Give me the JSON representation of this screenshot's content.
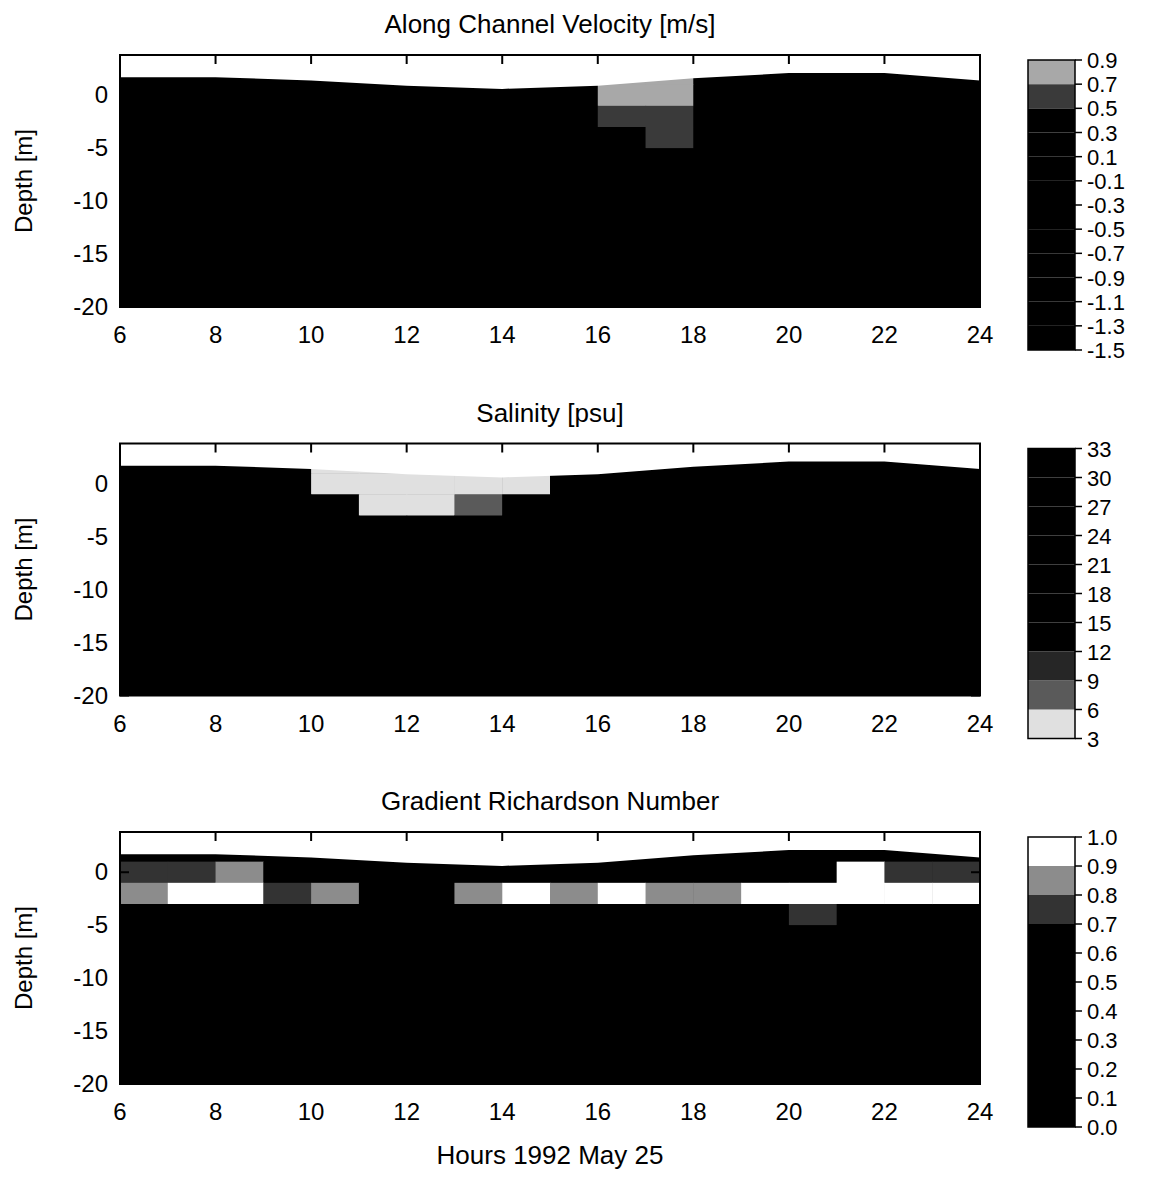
{
  "chart_data": [
    {
      "type": "heatmap",
      "title": "Along Channel Velocity [m/s]",
      "y_label": "Depth [m]",
      "xlim": [
        6,
        24
      ],
      "xticks": [
        6,
        8,
        10,
        12,
        14,
        16,
        18,
        20,
        22,
        24
      ],
      "ylim": [
        -20,
        3.8
      ],
      "yticks": [
        -20,
        -15,
        -10,
        -5,
        0
      ],
      "x_edges": [
        6,
        7,
        8,
        9,
        10,
        11,
        12,
        13,
        14,
        15,
        16,
        17,
        18,
        19,
        20,
        21,
        22,
        23,
        24
      ],
      "y_edges": [
        3,
        1,
        -1,
        -3,
        -5,
        -10,
        -15,
        -20
      ],
      "cells": [
        [
          -0.9,
          -1.0,
          -1.0,
          -0.9,
          -0.8,
          -0.6,
          -0.4,
          -0.2,
          0.0,
          0.2,
          0.8,
          0.8,
          0.4,
          0.2,
          -0.2,
          -0.6,
          -0.9,
          -1.0
        ],
        [
          -0.9,
          -1.0,
          -1.0,
          -0.9,
          -0.8,
          -0.6,
          -0.4,
          -0.2,
          0.0,
          0.2,
          0.8,
          0.8,
          0.4,
          0.2,
          -0.2,
          -0.6,
          -0.9,
          -1.0
        ],
        [
          -0.8,
          -0.9,
          -0.9,
          -0.8,
          -0.7,
          -0.5,
          -0.3,
          -0.1,
          0.1,
          0.3,
          0.6,
          0.6,
          0.4,
          0.2,
          -0.2,
          -0.5,
          -0.8,
          -0.9
        ],
        [
          -0.7,
          -0.8,
          -0.8,
          -0.7,
          -0.6,
          -0.4,
          -0.2,
          0.0,
          0.2,
          0.3,
          0.4,
          0.55,
          0.4,
          0.2,
          -0.1,
          -0.4,
          -0.7,
          -0.8
        ],
        [
          -0.5,
          -0.6,
          -0.6,
          -0.5,
          -0.4,
          -0.3,
          -0.1,
          0.1,
          0.2,
          0.3,
          0.4,
          0.4,
          0.3,
          0.2,
          0.0,
          -0.3,
          -0.5,
          -0.6
        ],
        [
          -0.3,
          -0.4,
          -0.4,
          -0.3,
          -0.2,
          -0.1,
          0.0,
          0.1,
          0.2,
          0.3,
          0.3,
          0.3,
          0.3,
          0.2,
          0.0,
          -0.2,
          -0.3,
          -0.4
        ],
        [
          -0.2,
          -0.3,
          -0.3,
          -0.2,
          -0.1,
          0.0,
          0.0,
          0.1,
          0.2,
          0.2,
          0.2,
          0.2,
          0.2,
          0.1,
          0.0,
          -0.1,
          -0.2,
          -0.3
        ]
      ],
      "surface": {
        "x": [
          6,
          8,
          10,
          12,
          14,
          16,
          18,
          20,
          22,
          24
        ],
        "values": [
          1.7,
          1.7,
          1.4,
          0.9,
          0.6,
          0.9,
          1.6,
          2.1,
          2.1,
          1.4
        ]
      },
      "colorbar": {
        "range": [
          -1.5,
          0.9
        ],
        "ticks": [
          -1.5,
          -1.3,
          -1.1,
          -0.9,
          -0.7,
          -0.5,
          -0.3,
          -0.1,
          0.1,
          0.3,
          0.5,
          0.7,
          0.9
        ],
        "colors": [
          "#000000",
          "#000000",
          "#000000",
          "#000000",
          "#000000",
          "#000000",
          "#000000",
          "#000000",
          "#000000",
          "#000000",
          "#3a3a3a",
          "#a8a8a8"
        ]
      }
    },
    {
      "type": "heatmap",
      "title": "Salinity [psu]",
      "y_label": "Depth [m]",
      "xlim": [
        6,
        24
      ],
      "xticks": [
        6,
        8,
        10,
        12,
        14,
        16,
        18,
        20,
        22,
        24
      ],
      "ylim": [
        -20,
        3.8
      ],
      "yticks": [
        -20,
        -15,
        -10,
        -5,
        0
      ],
      "x_edges": [
        6,
        7,
        8,
        9,
        10,
        11,
        12,
        13,
        14,
        15,
        16,
        17,
        18,
        19,
        20,
        21,
        22,
        23,
        24
      ],
      "y_edges": [
        3,
        1,
        -1,
        -3,
        -5,
        -10,
        -15,
        -20
      ],
      "cells": [
        [
          20,
          20,
          19,
          18,
          4,
          4,
          4,
          4,
          5,
          18,
          19,
          20,
          21,
          22,
          22,
          21,
          20,
          20
        ],
        [
          20,
          20,
          19,
          18,
          4,
          4,
          4,
          4,
          5,
          18,
          19,
          20,
          21,
          22,
          22,
          21,
          20,
          20
        ],
        [
          22,
          22,
          21,
          20,
          15,
          5,
          5,
          7,
          15,
          20,
          21,
          22,
          23,
          24,
          24,
          23,
          22,
          22
        ],
        [
          24,
          24,
          23,
          22,
          20,
          18,
          18,
          19,
          21,
          22,
          23,
          24,
          25,
          26,
          26,
          25,
          24,
          24
        ],
        [
          27,
          27,
          26,
          25,
          24,
          23,
          23,
          24,
          25,
          26,
          27,
          28,
          28,
          28,
          28,
          27,
          27,
          27
        ],
        [
          30,
          30,
          29,
          29,
          28,
          28,
          28,
          29,
          29,
          29,
          30,
          30,
          30,
          30,
          30,
          30,
          30,
          30
        ],
        [
          31,
          31,
          31,
          31,
          30,
          30,
          30,
          31,
          31,
          31,
          31,
          31,
          31,
          31,
          31,
          31,
          31,
          31
        ]
      ],
      "surface": {
        "x": [
          6,
          8,
          10,
          12,
          14,
          16,
          18,
          20,
          22,
          24
        ],
        "values": [
          1.7,
          1.7,
          1.4,
          0.9,
          0.6,
          0.9,
          1.6,
          2.1,
          2.1,
          1.4
        ]
      },
      "colorbar": {
        "range": [
          3,
          33
        ],
        "ticks": [
          3,
          6,
          9,
          12,
          15,
          18,
          21,
          24,
          27,
          30,
          33
        ],
        "colors": [
          "#e0e0e0",
          "#5a5a5a",
          "#262626",
          "#000000",
          "#000000",
          "#000000",
          "#000000",
          "#000000",
          "#000000",
          "#000000"
        ]
      }
    },
    {
      "type": "heatmap",
      "title": "Gradient Richardson Number",
      "y_label": "Depth [m]",
      "x_label": "Hours 1992 May 25",
      "xlim": [
        6,
        24
      ],
      "xticks": [
        6,
        8,
        10,
        12,
        14,
        16,
        18,
        20,
        22,
        24
      ],
      "ylim": [
        -20,
        3.8
      ],
      "yticks": [
        -20,
        -15,
        -10,
        -5,
        0
      ],
      "x_edges": [
        6,
        7,
        8,
        9,
        10,
        11,
        12,
        13,
        14,
        15,
        16,
        17,
        18,
        19,
        20,
        21,
        22,
        23,
        24
      ],
      "y_edges": [
        3,
        1,
        -1,
        -3,
        -5,
        -10,
        -15,
        -20
      ],
      "cells": [
        [
          0.3,
          0.3,
          0.3,
          0.3,
          0.3,
          0.3,
          0.3,
          0.3,
          0.3,
          0.3,
          0.3,
          0.3,
          0.3,
          0.3,
          0.3,
          0.3,
          0.3,
          0.3
        ],
        [
          0.75,
          0.75,
          0.85,
          0.5,
          0.5,
          0.4,
          0.3,
          0.5,
          0.4,
          0.5,
          0.5,
          0.5,
          0.5,
          0.5,
          0.4,
          0.95,
          0.75,
          0.75
        ],
        [
          0.85,
          0.95,
          0.95,
          0.75,
          0.85,
          0.6,
          0.5,
          0.85,
          0.95,
          0.85,
          0.95,
          0.85,
          0.85,
          0.95,
          0.95,
          0.95,
          0.95,
          0.95
        ],
        [
          0.4,
          0.4,
          0.3,
          0.3,
          0.3,
          0.3,
          0.3,
          0.3,
          0.3,
          0.3,
          0.3,
          0.3,
          0.3,
          0.3,
          0.75,
          0.4,
          0.3,
          0.3
        ],
        [
          0.3,
          0.3,
          0.3,
          0.3,
          0.3,
          0.3,
          0.3,
          0.3,
          0.3,
          0.3,
          0.3,
          0.3,
          0.3,
          0.3,
          0.5,
          0.3,
          0.3,
          0.3
        ],
        [
          0.2,
          0.2,
          0.2,
          0.2,
          0.2,
          0.2,
          0.2,
          0.2,
          0.2,
          0.2,
          0.2,
          0.2,
          0.2,
          0.2,
          0.2,
          0.2,
          0.2,
          0.2
        ],
        [
          0.1,
          0.1,
          0.1,
          0.1,
          0.1,
          0.1,
          0.1,
          0.1,
          0.1,
          0.1,
          0.1,
          0.1,
          0.1,
          0.1,
          0.1,
          0.1,
          0.1,
          0.1
        ]
      ],
      "surface": {
        "x": [
          6,
          8,
          10,
          12,
          14,
          16,
          18,
          20,
          22,
          24
        ],
        "values": [
          1.7,
          1.7,
          1.4,
          0.9,
          0.6,
          0.9,
          1.6,
          2.1,
          2.1,
          1.4
        ]
      },
      "colorbar": {
        "range": [
          0,
          1
        ],
        "ticks": [
          {
            "value": 0,
            "label": "0.0"
          },
          0.1,
          0.2,
          0.3,
          0.4,
          0.5,
          0.6,
          0.7,
          0.8,
          0.9,
          {
            "value": 1,
            "label": "1.0"
          }
        ],
        "colors": [
          "#000000",
          "#000000",
          "#000000",
          "#000000",
          "#000000",
          "#000000",
          "#000000",
          "#333333",
          "#8c8c8c",
          "#ffffff"
        ]
      }
    }
  ]
}
